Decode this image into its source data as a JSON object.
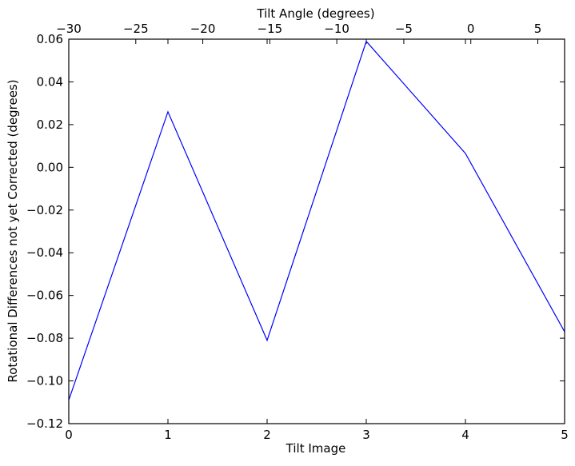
{
  "chart_data": {
    "type": "line",
    "title": "",
    "xlabel": "Tilt Image",
    "ylabel": "Rotational Differences not yet Corrected (degrees)",
    "x2label": "Tilt Angle (degrees)",
    "xlim": [
      0,
      5
    ],
    "ylim": [
      -0.12,
      0.06
    ],
    "x2lim": [
      -30,
      7
    ],
    "xticks": [
      0,
      1,
      2,
      3,
      4,
      5
    ],
    "xtick_labels": [
      "0",
      "1",
      "2",
      "3",
      "4",
      "5"
    ],
    "yticks": [
      -0.12,
      -0.1,
      -0.08,
      -0.06,
      -0.04,
      -0.02,
      0.0,
      0.02,
      0.04,
      0.06
    ],
    "ytick_labels": [
      "−0.12",
      "−0.10",
      "−0.08",
      "−0.06",
      "−0.04",
      "−0.02",
      "0.00",
      "0.02",
      "0.04",
      "0.06"
    ],
    "x2ticks": [
      -30,
      -25,
      -20,
      -15,
      -10,
      -5,
      0,
      5
    ],
    "x2tick_labels": [
      "−30",
      "−25",
      "−20",
      "−15",
      "−10",
      "−5",
      "0",
      "5"
    ],
    "grid": false,
    "series": [
      {
        "x": [
          0,
          1,
          2,
          3,
          4,
          5
        ],
        "values": [
          -0.109,
          0.026,
          -0.081,
          0.059,
          0.0065,
          -0.077
        ],
        "color": "#0000ff"
      }
    ]
  }
}
